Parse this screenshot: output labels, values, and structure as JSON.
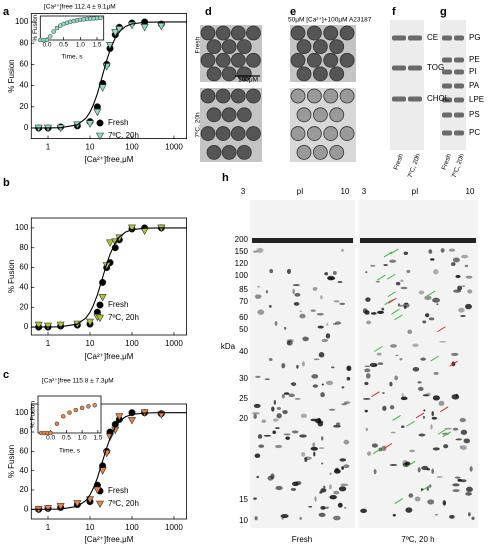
{
  "chart_data": [
    {
      "type": "scatter",
      "panel": "a",
      "xlabel": "[Ca²⁺]free,μM",
      "ylabel": "% Fusion",
      "log_x": true,
      "xlim": [
        0.4,
        2000
      ],
      "xticks": [
        1,
        10,
        100,
        1000
      ],
      "ylim": [
        -10,
        108
      ],
      "yticks": [
        0,
        20,
        40,
        60,
        80,
        100
      ],
      "series": [
        {
          "name": "Fresh",
          "color": "#000000",
          "marker": "circle",
          "x": [
            0.6,
            1,
            2,
            5,
            10,
            15,
            20,
            25,
            30,
            40,
            50,
            100,
            200,
            500
          ],
          "values": [
            0,
            0,
            1,
            2,
            6,
            20,
            42,
            60,
            75,
            88,
            95,
            99,
            100,
            98
          ]
        },
        {
          "name": "7ºC, 20h",
          "color": "#8fdcc8",
          "marker": "triangle",
          "x": [
            0.6,
            1,
            2,
            5,
            10,
            15,
            20,
            25,
            30,
            40,
            50,
            100,
            200,
            500
          ],
          "values": [
            0,
            0,
            0,
            3,
            4,
            15,
            38,
            58,
            78,
            90,
            93,
            97,
            95,
            96
          ]
        },
        {
          "color": "#000000",
          "style": "line",
          "x": [
            0.4,
            1,
            2,
            5,
            8,
            10,
            12,
            15,
            20,
            25,
            30,
            40,
            50,
            70,
            100,
            200,
            500,
            2000
          ],
          "values": [
            0,
            0.1,
            0.3,
            3,
            9.2,
            15,
            21.8,
            32.5,
            50,
            63.6,
            73.4,
            85,
            90.8,
            95.8,
            98.2,
            99.7,
            100,
            100
          ]
        }
      ]
    },
    {
      "type": "scatter",
      "panel": "b",
      "xlabel": "[Ca²⁺]free,μM",
      "ylabel": "% Fusion",
      "log_x": true,
      "xlim": [
        0.4,
        2000
      ],
      "xticks": [
        1,
        10,
        100,
        1000
      ],
      "ylim": [
        -8,
        110
      ],
      "yticks": [
        0,
        20,
        40,
        60,
        80,
        100
      ],
      "series": [
        {
          "name": "Fresh",
          "color": "#000000",
          "marker": "circle",
          "x": [
            0.6,
            1,
            2,
            5,
            10,
            15,
            20,
            25,
            30,
            40,
            50,
            100,
            200,
            500
          ],
          "values": [
            0,
            0,
            1,
            2,
            3,
            15,
            45,
            60,
            65,
            80,
            88,
            99,
            100,
            100
          ]
        },
        {
          "name": "7ºC, 20h",
          "color": "#b5c832",
          "marker": "triangle",
          "x": [
            0.6,
            1,
            2,
            5,
            10,
            15,
            20,
            25,
            30,
            40,
            50,
            100,
            200,
            500
          ],
          "values": [
            2,
            1,
            2,
            3,
            5,
            10,
            30,
            62,
            85,
            86,
            90,
            100,
            97,
            100
          ]
        },
        {
          "color": "#000000",
          "style": "line",
          "x": [
            0.4,
            1,
            2,
            5,
            8,
            10,
            12,
            15,
            20,
            25,
            30,
            40,
            50,
            70,
            100,
            200,
            500,
            2000
          ],
          "values": [
            0,
            0.1,
            0.3,
            3,
            9.2,
            15,
            21.8,
            32.5,
            50,
            63.6,
            73.4,
            85,
            90.8,
            95.8,
            98.2,
            99.7,
            100,
            100
          ]
        }
      ]
    },
    {
      "type": "scatter",
      "panel": "c",
      "xlabel": "[Ca²⁺]free,μM",
      "ylabel": "% Fusion",
      "log_x": true,
      "xlim": [
        0.4,
        2000
      ],
      "xticks": [
        1,
        10,
        100,
        1000
      ],
      "ylim": [
        -10,
        109
      ],
      "yticks": [
        0,
        20,
        40,
        60,
        80,
        100
      ],
      "series": [
        {
          "name": "Fresh",
          "color": "#000000",
          "marker": "circle",
          "x": [
            0.6,
            1,
            2,
            5,
            10,
            15,
            20,
            25,
            30,
            40,
            50,
            100,
            200,
            500
          ],
          "values": [
            0,
            1,
            2,
            5,
            8,
            25,
            45,
            60,
            80,
            88,
            93,
            100,
            100,
            99
          ]
        },
        {
          "name": "7ºC, 20h",
          "color": "#e8834a",
          "marker": "triangle",
          "x": [
            0.6,
            1,
            2,
            5,
            10,
            15,
            20,
            25,
            30,
            40,
            50,
            100,
            200,
            500
          ],
          "values": [
            0,
            1,
            3,
            6,
            10,
            20,
            40,
            58,
            75,
            82,
            96,
            92,
            100,
            98
          ]
        },
        {
          "color": "#000000",
          "style": "line",
          "x": [
            0.4,
            1,
            2,
            5,
            8,
            10,
            12,
            15,
            20,
            25,
            30,
            40,
            50,
            70,
            100,
            200,
            500,
            2000
          ],
          "values": [
            0,
            0.1,
            0.3,
            3,
            9.2,
            15,
            21.8,
            32.5,
            50,
            63.6,
            73.4,
            85,
            90.8,
            95.8,
            98.2,
            99.7,
            100,
            100
          ]
        }
      ]
    },
    {
      "type": "scatter",
      "title": "[Ca²⁺]free 112.4 ± 9.1μM",
      "xlabel": "Time, s",
      "ylabel": "% Fusion",
      "xlim": [
        -0.2,
        1.7
      ],
      "xticks": [
        {
          "value": 0,
          "label": "0.0"
        },
        0.5,
        {
          "value": 1,
          "label": "1.0"
        },
        1.5
      ],
      "ylim": [
        0,
        100
      ],
      "color": "#8fdcc8",
      "x": [
        -0.2,
        -0.1,
        0,
        0.1,
        0.2,
        0.3,
        0.4,
        0.5,
        0.6,
        0.7,
        0.8,
        0.9,
        1.0,
        1.1,
        1.2,
        1.3,
        1.4,
        1.5,
        1.6
      ],
      "values": [
        0,
        0,
        0,
        15,
        35,
        50,
        60,
        67,
        72,
        76,
        79,
        82,
        84,
        86,
        88,
        89,
        90,
        91,
        92
      ]
    },
    {
      "type": "scatter",
      "title": "[Ca²⁺]free 115.8 ± 7.3μM",
      "xlabel": "Time, s",
      "ylabel": "% Fusion",
      "xlim": [
        -0.4,
        1.6
      ],
      "xticks": [
        {
          "value": 0,
          "label": "0.0"
        },
        0.5,
        {
          "value": 1,
          "label": "1.0"
        },
        1.5
      ],
      "ylim": [
        0,
        100
      ],
      "color": "#e8834a",
      "x": [
        -0.3,
        -0.2,
        -0.1,
        0,
        0.2,
        0.4,
        0.6,
        0.8,
        1.0,
        1.2,
        1.4
      ],
      "values": [
        0,
        0,
        0,
        0,
        25,
        45,
        55,
        62,
        68,
        72,
        75
      ]
    }
  ],
  "images": {
    "d": {
      "label": "d",
      "rows": [
        "Fresh",
        "7ºC, 20h"
      ],
      "scale_bar": "100μM"
    },
    "e": {
      "label": "e",
      "title": "50μM [Ca²⁺]+100μM A23187"
    },
    "f": {
      "label": "f",
      "bands": [
        "CE",
        "TOG",
        "CHOL"
      ],
      "lanes": [
        "Fresh",
        "7ºC, 20h"
      ]
    },
    "g": {
      "label": "g",
      "bands": [
        "PG",
        "PE",
        "PI",
        "PA",
        "LPE",
        "PS",
        "PC"
      ],
      "lanes": [
        "Fresh",
        "7ºC, 20h"
      ]
    },
    "h": {
      "label": "h",
      "ph_labels": [
        "3",
        "pI",
        "10"
      ],
      "mw_unit": "kDa",
      "mw": [
        200,
        150,
        120,
        100,
        85,
        70,
        60,
        50,
        40,
        30,
        25,
        20,
        15,
        10
      ],
      "gels": [
        "Fresh",
        "7ºC, 20 h"
      ]
    }
  }
}
